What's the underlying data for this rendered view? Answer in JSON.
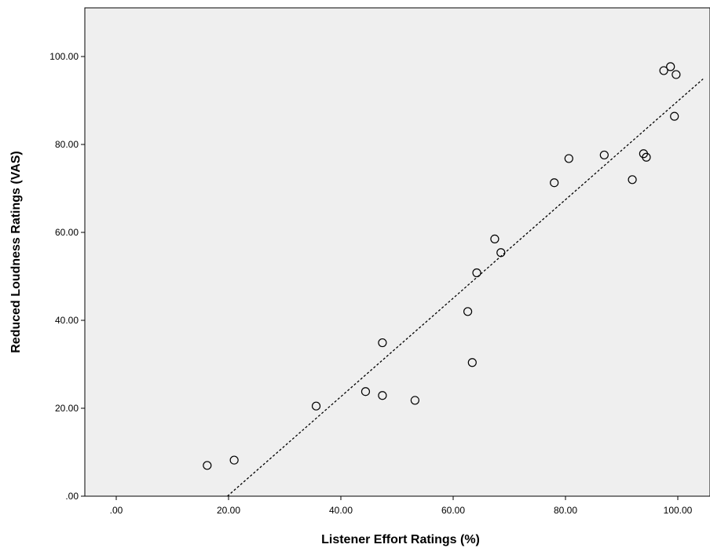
{
  "chart_data": {
    "type": "scatter",
    "title": "",
    "xlabel": "Listener Effort Ratings (%)",
    "ylabel": "Reduced Loudness Ratings (VAS)",
    "xlim": [
      -5,
      105
    ],
    "ylim": [
      0,
      110
    ],
    "x_ticks": [
      0,
      20,
      40,
      60,
      80,
      100
    ],
    "x_tick_labels": [
      ".00",
      "20.00",
      "40.00",
      "60.00",
      "80.00",
      "100.00"
    ],
    "y_ticks": [
      0,
      20,
      40,
      60,
      80,
      100
    ],
    "y_tick_labels": [
      ".00",
      "20.00",
      "40.00",
      "60.00",
      "80.00",
      "100.00"
    ],
    "grid": false,
    "plot_background": "#efefef",
    "marker": "open-circle",
    "points": [
      {
        "x": 16.2,
        "y": 7.0
      },
      {
        "x": 21.0,
        "y": 8.2
      },
      {
        "x": 35.6,
        "y": 20.5
      },
      {
        "x": 44.4,
        "y": 23.8
      },
      {
        "x": 47.4,
        "y": 22.9
      },
      {
        "x": 47.4,
        "y": 34.9
      },
      {
        "x": 53.2,
        "y": 21.8
      },
      {
        "x": 62.6,
        "y": 42.0
      },
      {
        "x": 63.4,
        "y": 30.4
      },
      {
        "x": 64.2,
        "y": 50.8
      },
      {
        "x": 67.4,
        "y": 58.5
      },
      {
        "x": 68.5,
        "y": 55.4
      },
      {
        "x": 78.0,
        "y": 71.3
      },
      {
        "x": 80.6,
        "y": 76.8
      },
      {
        "x": 86.9,
        "y": 77.6
      },
      {
        "x": 91.9,
        "y": 72.0
      },
      {
        "x": 93.9,
        "y": 77.9
      },
      {
        "x": 94.4,
        "y": 77.1
      },
      {
        "x": 97.5,
        "y": 96.8
      },
      {
        "x": 98.7,
        "y": 97.7
      },
      {
        "x": 99.4,
        "y": 86.4
      },
      {
        "x": 99.7,
        "y": 95.9
      }
    ],
    "fit_line": {
      "style": "dotted",
      "x": [
        19.8,
        104.5
      ],
      "y": [
        0,
        94.9
      ]
    }
  }
}
